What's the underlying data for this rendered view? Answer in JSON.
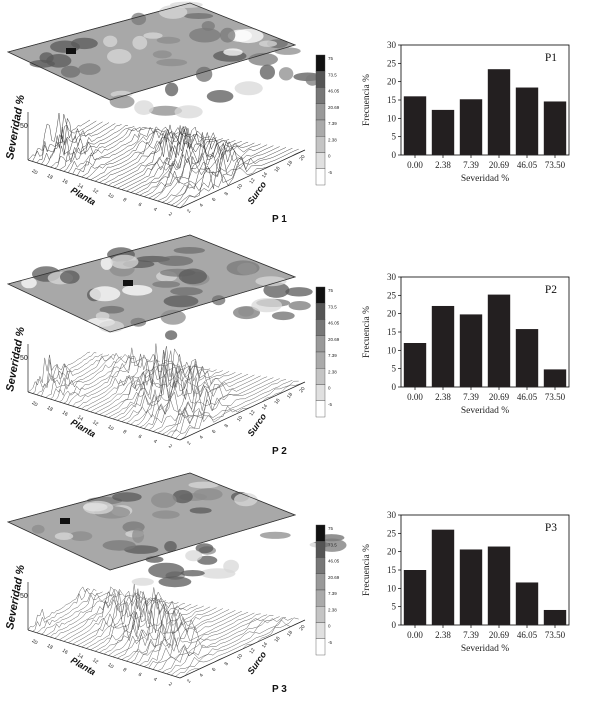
{
  "panels": [
    {
      "name": "P 1",
      "axis_z": "Severidad %",
      "axis_x": "Planta",
      "axis_y": "Surco",
      "z_tick": "50",
      "colorbar_ticks": [
        "75",
        "73.5",
        "46.05",
        "20.69",
        "7.39",
        "2.38",
        "0",
        "-5"
      ],
      "x_ticks": [
        "20",
        "18",
        "16",
        "14",
        "12",
        "10",
        "8",
        "6",
        "4",
        "2"
      ],
      "y_ticks": [
        "2",
        "4",
        "6",
        "8",
        "10",
        "12",
        "14",
        "16",
        "18",
        "20"
      ]
    },
    {
      "name": "P 2",
      "axis_z": "Severidad %",
      "axis_x": "Planta",
      "axis_y": "Surco",
      "z_tick": "50",
      "colorbar_ticks": [
        "75",
        "73.5",
        "46.05",
        "20.69",
        "7.39",
        "2.38",
        "0",
        "-5"
      ],
      "x_ticks": [
        "20",
        "18",
        "16",
        "14",
        "12",
        "10",
        "8",
        "6",
        "4",
        "2"
      ],
      "y_ticks": [
        "2",
        "4",
        "6",
        "8",
        "10",
        "12",
        "14",
        "16",
        "18",
        "20"
      ]
    },
    {
      "name": "P 3",
      "axis_z": "Severidad %",
      "axis_x": "Planta",
      "axis_y": "Surco",
      "z_tick": "50",
      "colorbar_ticks": [
        "75",
        "73.5",
        "46.05",
        "20.69",
        "7.39",
        "2.38",
        "0",
        "-5"
      ],
      "x_ticks": [
        "20",
        "18",
        "16",
        "14",
        "12",
        "10",
        "8",
        "6",
        "4",
        "2"
      ],
      "y_ticks": [
        "2",
        "4",
        "6",
        "8",
        "10",
        "12",
        "14",
        "16",
        "18",
        "20"
      ]
    }
  ],
  "chart_data": [
    {
      "type": "bar",
      "title": "P1",
      "xlabel": "Severidad %",
      "ylabel": "Frecuencia %",
      "categories": [
        "0.00",
        "2.38",
        "7.39",
        "20.69",
        "46.05",
        "73.50"
      ],
      "values": [
        16,
        12.3,
        15.2,
        23.4,
        18.4,
        14.6
      ],
      "ylim": [
        0,
        30
      ],
      "yticks": [
        0,
        5,
        10,
        15,
        20,
        25,
        30
      ],
      "bar_color": "#231f20",
      "grid": false
    },
    {
      "type": "bar",
      "title": "P2",
      "xlabel": "Severidad %",
      "ylabel": "Frecuencia %",
      "categories": [
        "0.00",
        "2.38",
        "7.39",
        "20.69",
        "46.05",
        "73.50"
      ],
      "values": [
        12,
        22.1,
        19.8,
        25.2,
        15.8,
        4.8
      ],
      "ylim": [
        0,
        30
      ],
      "yticks": [
        0,
        5,
        10,
        15,
        20,
        25,
        30
      ],
      "bar_color": "#231f20",
      "grid": false
    },
    {
      "type": "bar",
      "title": "P3",
      "xlabel": "Severidad %",
      "ylabel": "Frecuencia %",
      "categories": [
        "0.00",
        "2.38",
        "7.39",
        "20.69",
        "46.05",
        "73.50"
      ],
      "values": [
        15,
        26,
        20.6,
        21.4,
        11.6,
        4.1
      ],
      "ylim": [
        0,
        30
      ],
      "yticks": [
        0,
        5,
        10,
        15,
        20,
        25,
        30
      ],
      "bar_color": "#231f20",
      "grid": false
    }
  ]
}
